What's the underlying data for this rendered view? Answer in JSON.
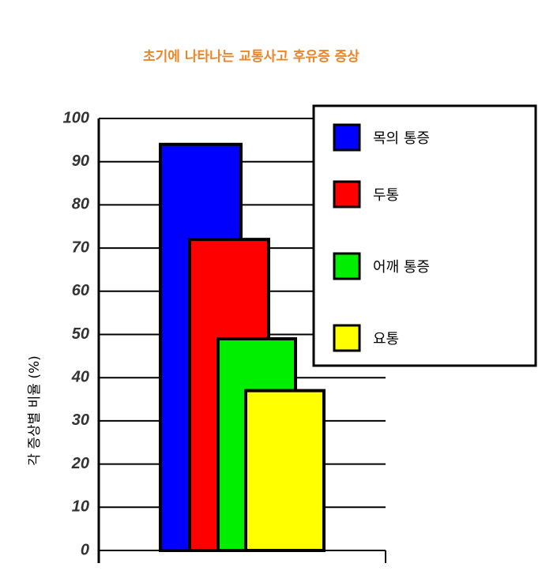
{
  "chart_data": {
    "type": "bar",
    "title": "초기에 나타나는 교통사고 후유증 증상",
    "y_label": "각 증상별 비율 (%)",
    "series": [
      {
        "name": "목의 통증",
        "color": "#0000ff",
        "values": [
          94
        ]
      },
      {
        "name": "두통",
        "color": "#ff0000",
        "values": [
          72
        ]
      },
      {
        "name": "어깨 통증",
        "color": "#00ee00",
        "values": [
          49
        ]
      },
      {
        "name": "요통",
        "color": "#ffff00",
        "values": [
          37
        ]
      }
    ],
    "ylim": [
      0,
      100
    ],
    "yticks": [
      0,
      10,
      20,
      30,
      40,
      50,
      60,
      70,
      80,
      90,
      100
    ],
    "grid": true,
    "legend": "upper right"
  }
}
